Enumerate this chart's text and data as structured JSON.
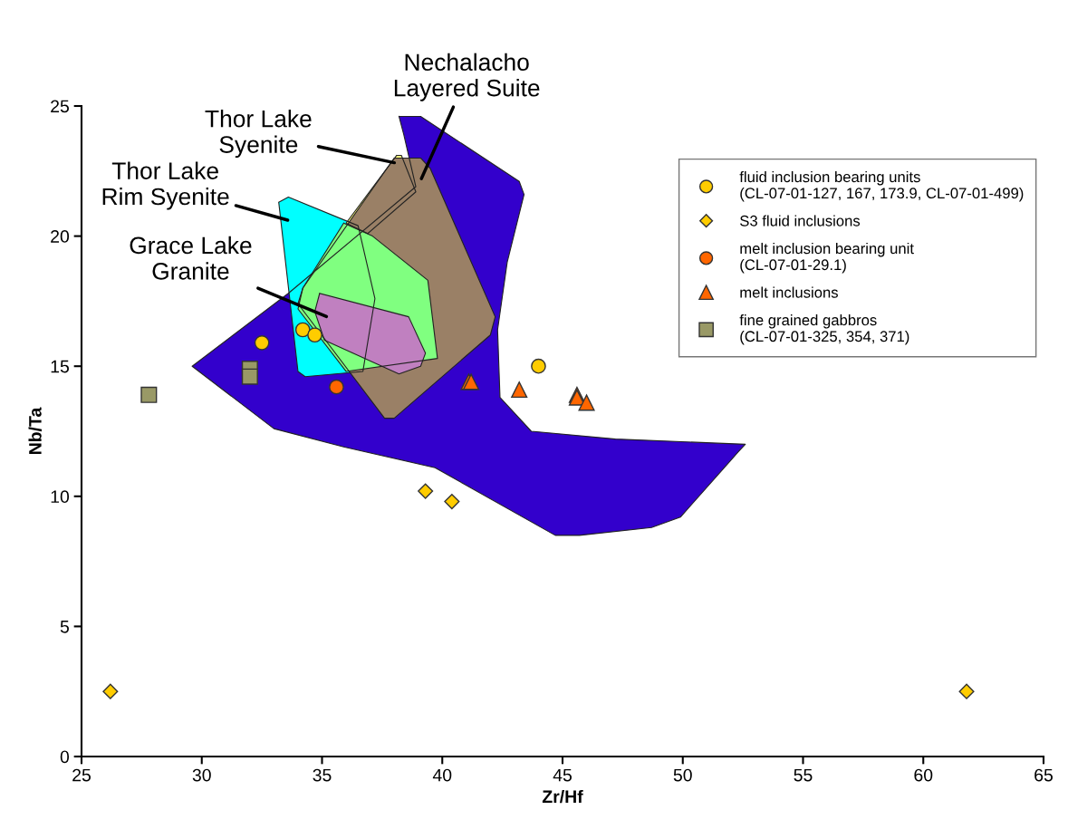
{
  "chart_data": {
    "type": "scatter",
    "xlabel": "Zr/Hf",
    "ylabel": "Nb/Ta",
    "xlim": [
      25,
      65
    ],
    "xticks": [
      25,
      30,
      35,
      40,
      45,
      50,
      55,
      60,
      65
    ],
    "ylim": [
      0,
      25
    ],
    "yticks": [
      0,
      5,
      10,
      15,
      20,
      25
    ],
    "grid": false,
    "legend": "top right",
    "series": [
      {
        "type": "area",
        "name": "Nechalacho\nLayered Suite",
        "color": "#3300cc",
        "x": [
          38.2,
          39.1,
          43.2,
          43.4,
          42.7,
          42.3,
          42.4,
          43.7,
          47.2,
          52.6,
          52.3,
          49.9,
          48.7,
          45.7,
          44.7,
          39.7,
          35.9,
          33.0,
          29.6,
          33.6,
          38.9,
          38.4
        ],
        "values": [
          24.6,
          24.6,
          22.1,
          21.6,
          19.0,
          16.4,
          13.8,
          12.5,
          12.2,
          12.0,
          11.7,
          9.2,
          8.8,
          8.5,
          8.5,
          11.1,
          11.9,
          12.6,
          15.0,
          17.8,
          21.9,
          23.9
        ]
      },
      {
        "type": "area",
        "name": "Thor Lake\nRim Syenite",
        "color": "#00ffff",
        "x": [
          33.2,
          33.6,
          36.5,
          37.2,
          36.7,
          34.3,
          34.0
        ],
        "values": [
          21.3,
          21.5,
          20.4,
          17.6,
          14.8,
          14.6,
          14.8
        ]
      },
      {
        "type": "area",
        "name": "Thor Lake\nSyenite",
        "color": "#ffff80",
        "x": [
          38.1,
          38.3,
          38.9,
          36.9,
          36.0
        ],
        "values": [
          23.1,
          23.1,
          21.7,
          20.1,
          20.5
        ]
      },
      {
        "type": "area",
        "color": "#9a8066",
        "x": [
          38.0,
          39.1,
          39.5,
          42.2,
          42.0,
          38.0,
          37.6,
          34.0,
          34.2
        ],
        "values": [
          23.0,
          23.0,
          22.6,
          16.9,
          16.2,
          13.0,
          13.0,
          17.4,
          18.0
        ]
      },
      {
        "type": "area",
        "color": "#80ff80",
        "x": [
          35.9,
          37.1,
          39.4,
          39.8,
          36.0,
          34.0,
          34.2
        ],
        "values": [
          20.5,
          20.0,
          18.3,
          15.3,
          14.8,
          17.2,
          18.0
        ]
      },
      {
        "type": "area",
        "name": "Grace Lake\nGranite",
        "color": "#c080c0",
        "x": [
          34.9,
          38.6,
          39.3,
          39.1,
          38.2,
          35.1,
          34.7
        ],
        "values": [
          17.8,
          16.9,
          15.5,
          15.0,
          14.7,
          16.0,
          17.1
        ]
      },
      {
        "marker": "circle",
        "name": "fluid inclusion bearing units\n(CL-07-01-127, 167, 173.9, CL-07-01-499)",
        "color": "#ffcc00",
        "x": [
          32.5,
          34.2,
          34.7,
          44.0
        ],
        "values": [
          15.9,
          16.4,
          16.2,
          15.0
        ]
      },
      {
        "marker": "diamond",
        "name": "S3 fluid inclusions",
        "color": "#ffcc00",
        "x": [
          26.2,
          39.3,
          40.4,
          61.8
        ],
        "values": [
          2.5,
          10.2,
          9.8,
          2.5
        ]
      },
      {
        "marker": "circle",
        "name": "melt inclusion bearing unit\n(CL-07-01-29.1)",
        "color": "#ff6600",
        "x": [
          35.6
        ],
        "values": [
          14.2
        ]
      },
      {
        "marker": "triangle",
        "name": "melt inclusions",
        "color": "#ff6600",
        "x": [
          41.1,
          41.2,
          43.2,
          45.6,
          45.6,
          46.0
        ],
        "values": [
          14.4,
          14.4,
          14.1,
          13.9,
          13.8,
          13.6
        ]
      },
      {
        "marker": "square",
        "name": "fine grained gabbros\n(CL-07-01-325, 354, 371)",
        "color": "#999966",
        "x": [
          27.8,
          32.0,
          32.0
        ],
        "values": [
          13.9,
          14.9,
          14.6
        ]
      }
    ]
  }
}
